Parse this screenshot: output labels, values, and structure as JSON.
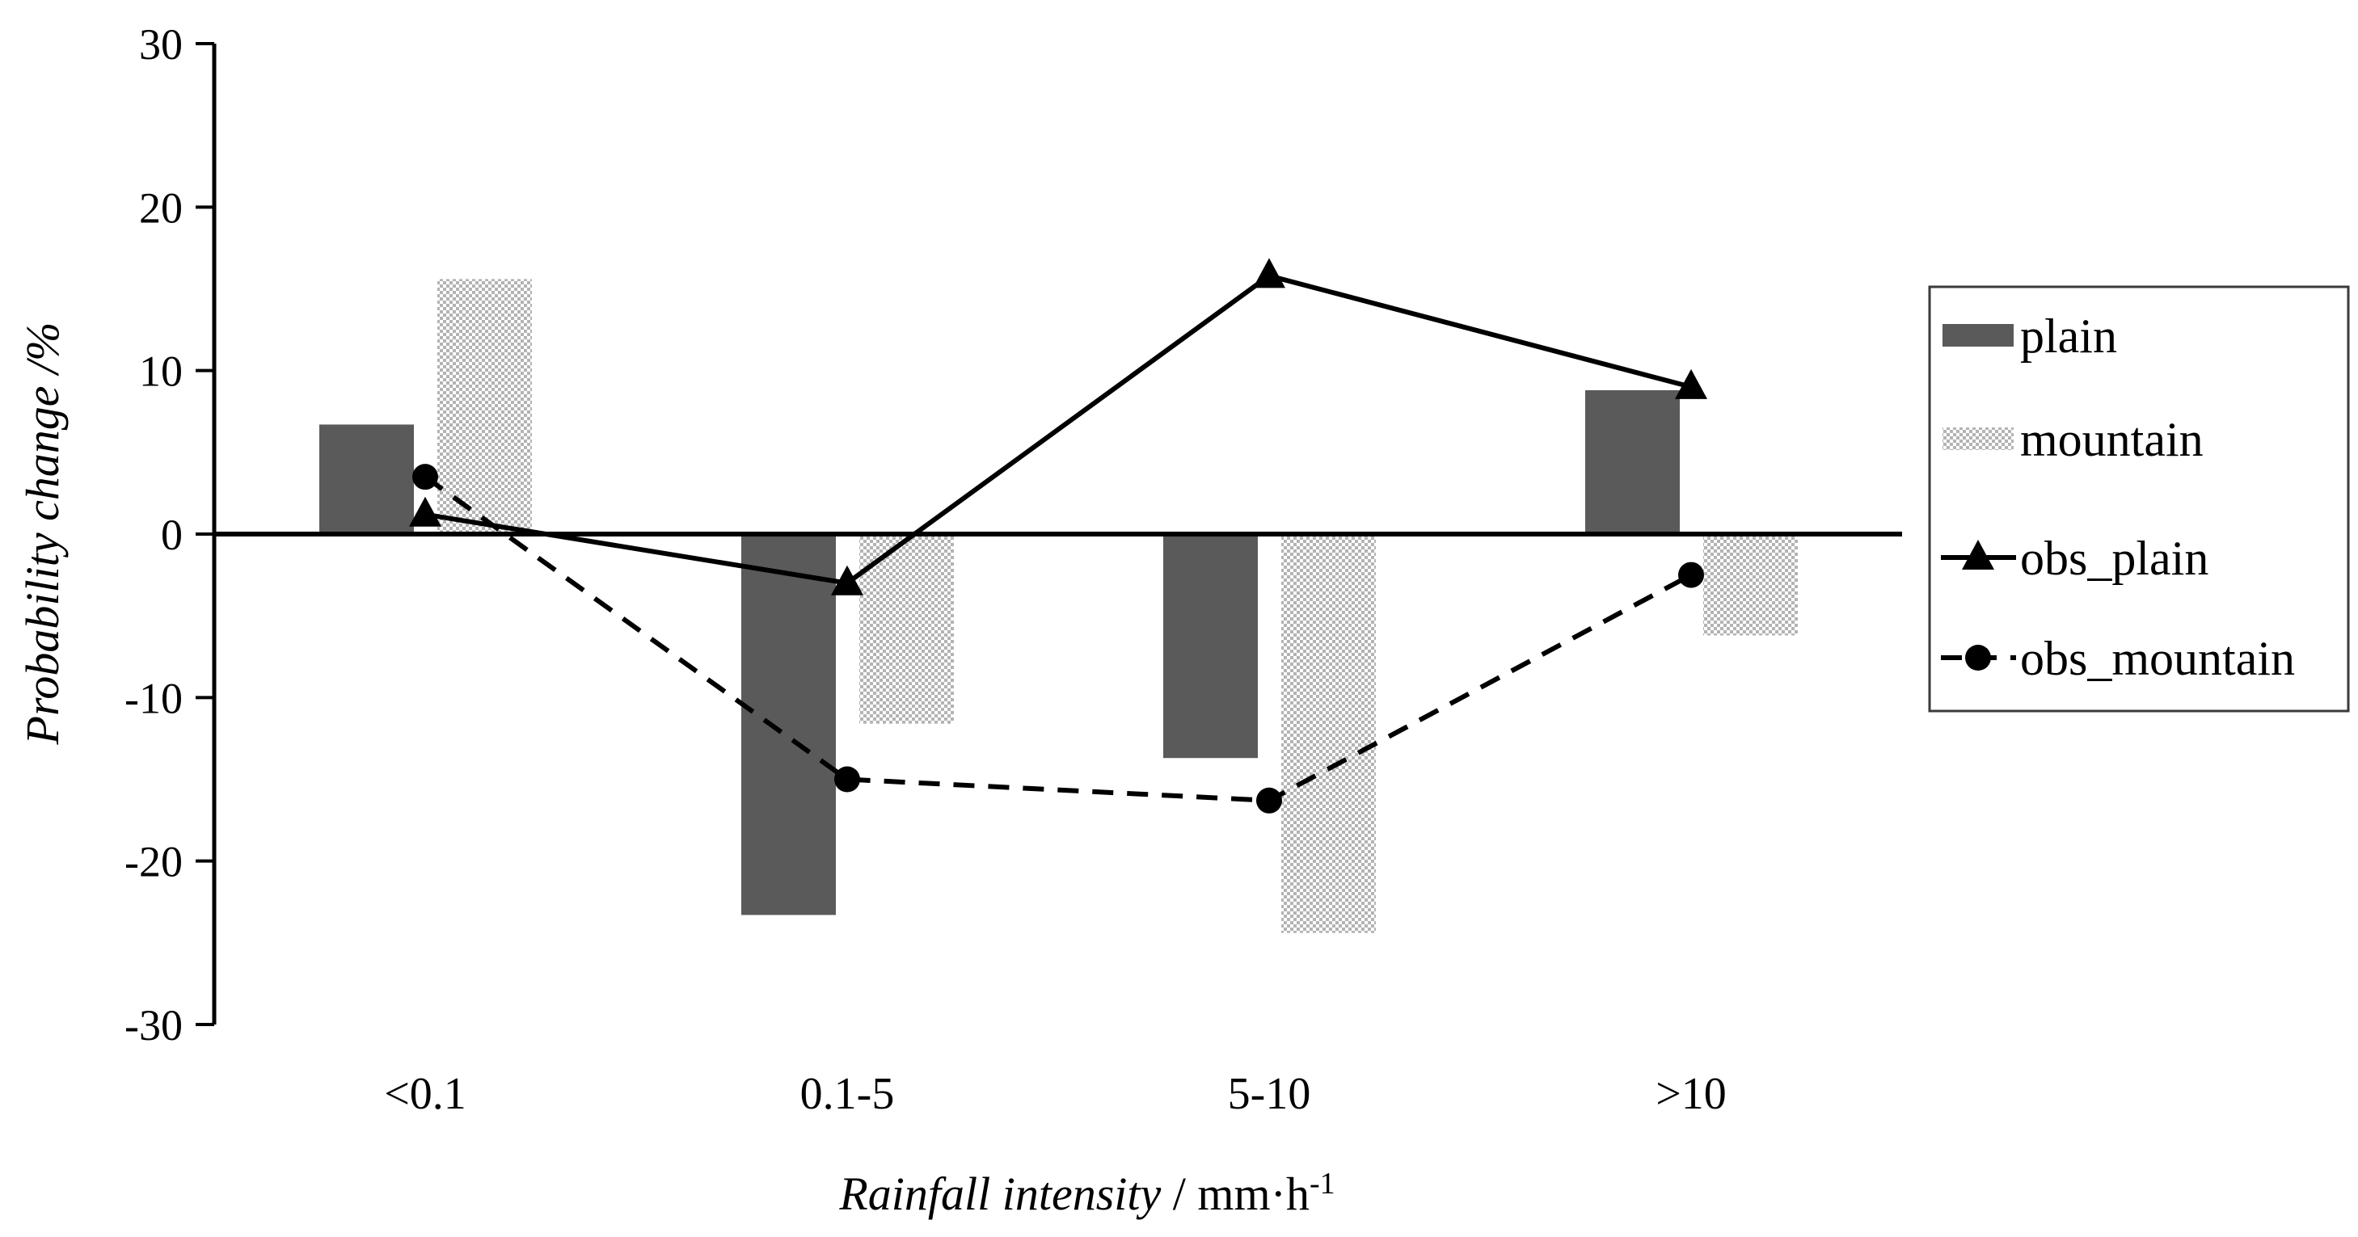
{
  "chart_data": {
    "type": "combo-bar-line",
    "title": "",
    "categories": [
      "<0.1",
      "0.1-5",
      "5-10",
      ">10"
    ],
    "series": [
      {
        "name": "plain",
        "type": "bar",
        "pattern": "solid",
        "color": "#5a5a5a",
        "values": [
          6.7,
          -23.3,
          -13.7,
          8.8
        ]
      },
      {
        "name": "mountain",
        "type": "bar",
        "pattern": "checker",
        "color": "#b3b3b3",
        "values": [
          15.6,
          -11.6,
          -24.4,
          -6.2
        ]
      },
      {
        "name": "obs_plain",
        "type": "line",
        "linestyle": "solid",
        "marker": "triangle",
        "color": "#000000",
        "values": [
          1.2,
          -3.0,
          15.8,
          9.0
        ]
      },
      {
        "name": "obs_mountain",
        "type": "line",
        "linestyle": "dashed",
        "marker": "circle",
        "color": "#000000",
        "values": [
          3.5,
          -15.0,
          -16.3,
          -2.5
        ]
      }
    ],
    "ylabel": "Probability change /%",
    "xlabel": {
      "name_italic": "Rainfall intensity",
      "separator": " / ",
      "unit": "mm·h",
      "unit_exponent": "-1"
    },
    "ylim": [
      -30,
      30
    ],
    "yticks": [
      30,
      20,
      10,
      0,
      -10,
      -20,
      -30
    ],
    "grid": false,
    "legend_position": "right",
    "legend_entries": [
      "plain",
      "mountain",
      "obs_plain",
      "obs_mountain"
    ],
    "colors": {
      "axis": "#000000",
      "bar_plain": "#5a5a5a",
      "checker_gray": "#b3b3b3",
      "line": "#000000",
      "legend_border": "#3a3a3a",
      "background": "#ffffff"
    }
  }
}
